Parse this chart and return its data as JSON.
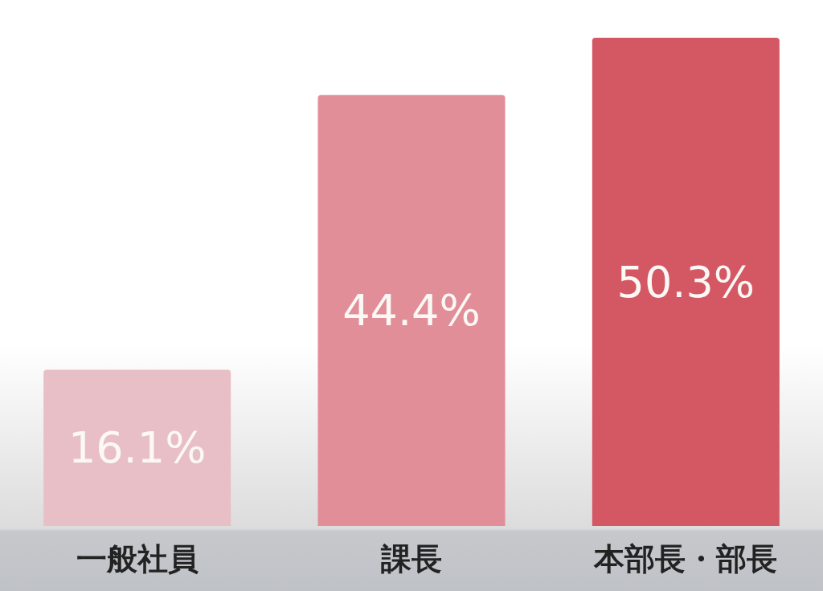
{
  "chart_data": {
    "type": "bar",
    "categories": [
      "一般社員",
      "課長",
      "本部長・部長"
    ],
    "values": [
      16.1,
      44.4,
      50.3
    ],
    "colors": [
      "#e8bfc6",
      "#e28e99",
      "#d45864"
    ],
    "value_labels": [
      "16.1%",
      "44.4%",
      "50.3%"
    ]
  }
}
